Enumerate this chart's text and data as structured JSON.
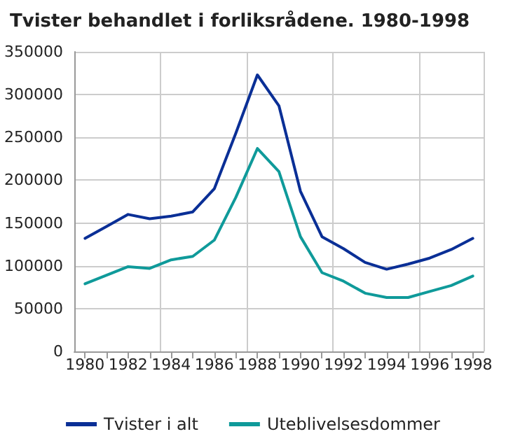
{
  "chart_data": {
    "type": "line",
    "title": "Tvister behandlet i forliksrådene. 1980-1998",
    "categories": [
      "1980",
      null,
      "1982",
      null,
      "1984",
      null,
      "1986",
      null,
      "1988",
      null,
      "1990",
      null,
      "1992",
      null,
      "1994",
      null,
      "1996",
      null,
      "1998"
    ],
    "series": [
      {
        "name": "Tvister i alt",
        "color": "#0a2f96",
        "values": [
          132000,
          146000,
          160000,
          155000,
          158000,
          163000,
          190000,
          255000,
          323000,
          287000,
          187000,
          134000,
          120000,
          104000,
          96000,
          102000,
          109000,
          119000,
          132000
        ]
      },
      {
        "name": "Uteblivelsesdommer",
        "color": "#0f9a9a",
        "values": [
          79000,
          89000,
          99000,
          97000,
          107000,
          111000,
          130000,
          180000,
          237000,
          210000,
          134000,
          92000,
          82000,
          68000,
          63000,
          63000,
          70000,
          77000,
          88000
        ]
      }
    ],
    "ylim": [
      0,
      350000
    ],
    "yticks": [
      0,
      50000,
      100000,
      150000,
      200000,
      250000,
      300000,
      350000
    ],
    "grid": true,
    "legend": "bottom",
    "marker": "none",
    "line_style": "solid"
  }
}
